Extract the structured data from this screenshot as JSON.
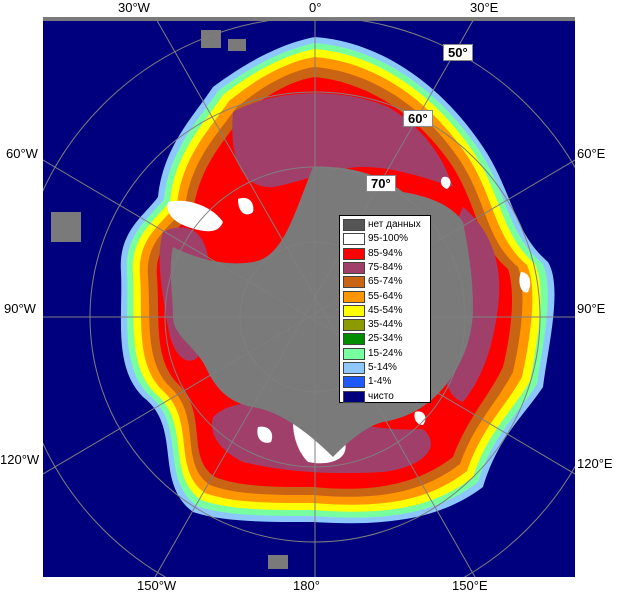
{
  "map": {
    "longitude_labels": {
      "top_30w": "30°W",
      "top_0": "0°",
      "top_30e": "30°E",
      "left_60w": "60°W",
      "right_60e": "60°E",
      "left_90w": "90°W",
      "right_90e": "90°E",
      "left_120w": "120°W",
      "right_120e": "120°E",
      "bottom_150w": "150°W",
      "bottom_180": "180°",
      "bottom_150e": "150°E"
    },
    "latitude_labels": {
      "lat_50": "50°",
      "lat_60": "60°",
      "lat_70": "70°"
    },
    "colors": {
      "ocean": "#00007f",
      "land_nodata": "#7a7a7a",
      "grid": "#7f7f7f"
    }
  },
  "legend": {
    "items": [
      {
        "label": "нет данных",
        "color": "#555555"
      },
      {
        "label": "95-100%",
        "color": "#ffffff"
      },
      {
        "label": "85-94%",
        "color": "#ff0000"
      },
      {
        "label": "75-84%",
        "color": "#a0406a"
      },
      {
        "label": "65-74%",
        "color": "#c86414"
      },
      {
        "label": "55-64%",
        "color": "#ff9600"
      },
      {
        "label": "45-54%",
        "color": "#ffff00"
      },
      {
        "label": "35-44%",
        "color": "#8c9b00"
      },
      {
        "label": "25-34%",
        "color": "#008c00"
      },
      {
        "label": "15-24%",
        "color": "#78ffa0"
      },
      {
        "label": "5-14%",
        "color": "#8cc8ff"
      },
      {
        "label": "1-4%",
        "color": "#1e5aff"
      },
      {
        "label": "чисто",
        "color": "#00007f"
      }
    ]
  }
}
